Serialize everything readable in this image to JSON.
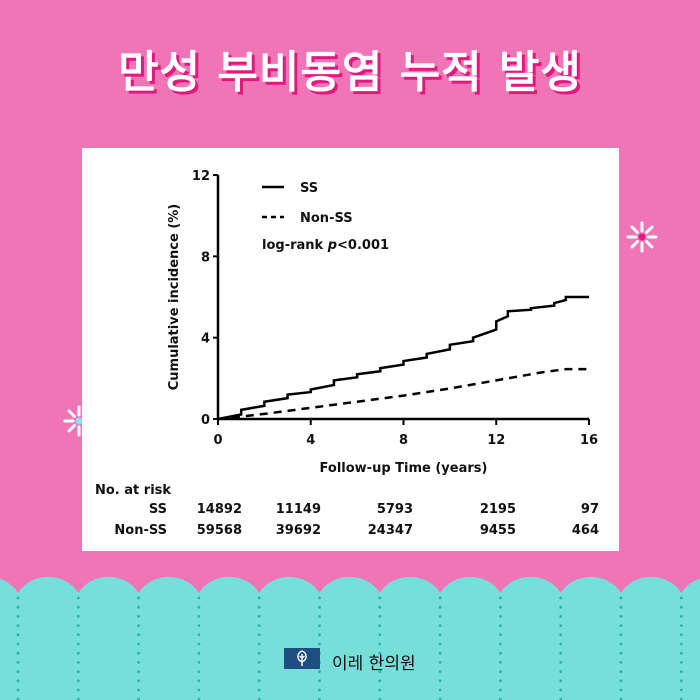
{
  "title": "만성 부비동염 누적 발생",
  "footer": {
    "brand": "이레 한의원",
    "logo_icon": "leaf-icon"
  },
  "colors": {
    "background": "#f075b7",
    "title_shadow": "#e0187f",
    "bottom_band": "#76dfda",
    "dots": "#2bb3aa",
    "logo_bg": "#1f4e82"
  },
  "chart_data": {
    "type": "line",
    "title": "",
    "xlabel": "Follow-up Time (years)",
    "ylabel": "Cumulative incidence (%)",
    "xlim": [
      0,
      16
    ],
    "ylim": [
      0,
      12
    ],
    "xticks": [
      0,
      4,
      8,
      12,
      16
    ],
    "yticks": [
      0,
      4,
      8,
      12
    ],
    "grid": false,
    "legend_position": "top-left",
    "annotation": "log-rank p<0.001",
    "series": [
      {
        "name": "SS",
        "style": "solid",
        "x": [
          0,
          1,
          2,
          3,
          4,
          5,
          6,
          7,
          8,
          9,
          10,
          11,
          12,
          12.5,
          13.5,
          14.5,
          15,
          16
        ],
        "y": [
          0,
          0.45,
          0.85,
          1.2,
          1.45,
          1.9,
          2.2,
          2.5,
          2.85,
          3.2,
          3.65,
          4.0,
          4.8,
          5.3,
          5.45,
          5.7,
          6.0,
          6.0
        ]
      },
      {
        "name": "Non-SS",
        "style": "dashed",
        "x": [
          0,
          2,
          4,
          6,
          8,
          10,
          12,
          14,
          15,
          16
        ],
        "y": [
          0,
          0.25,
          0.55,
          0.85,
          1.15,
          1.5,
          1.9,
          2.3,
          2.45,
          2.45
        ]
      }
    ],
    "risk_table": {
      "header": "No. at risk",
      "rows": [
        {
          "label": "SS",
          "values": [
            "14892",
            "11149",
            "5793",
            "2195",
            "97"
          ]
        },
        {
          "label": "Non-SS",
          "values": [
            "59568",
            "39692",
            "24347",
            "9455",
            "464"
          ]
        }
      ]
    }
  }
}
